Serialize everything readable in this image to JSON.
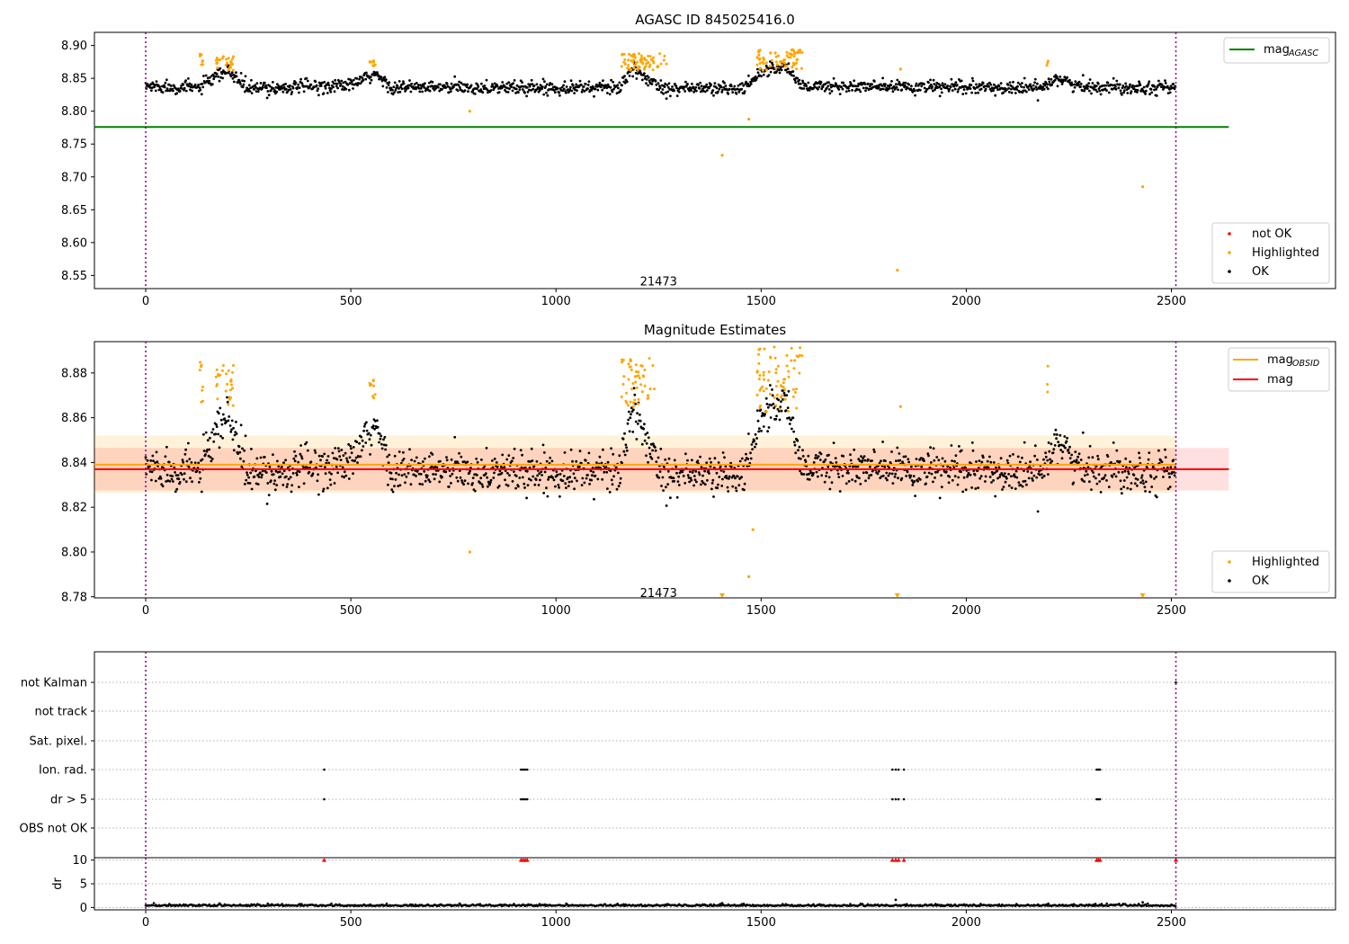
{
  "figure": {
    "title_top": "AGASC ID 845025416.0",
    "title_mid": "Magnitude Estimates"
  },
  "chart_data": [
    {
      "type": "scatter",
      "title": "AGASC ID 845025416.0",
      "xlim": [
        -125,
        2900
      ],
      "ylim": [
        8.53,
        8.92
      ],
      "xticks": [
        0,
        500,
        1000,
        1500,
        2000,
        2500
      ],
      "yticks": [
        8.55,
        8.6,
        8.65,
        8.7,
        8.75,
        8.8,
        8.85,
        8.9
      ],
      "reference_line": {
        "name": "mag_AGASC",
        "y": 8.776,
        "x_range": [
          -125,
          2640
        ],
        "color": "#008000"
      },
      "vlines": [
        0,
        2511
      ],
      "annotation": {
        "text": "21473",
        "x": 1250,
        "y": 8.54
      },
      "legend_main": {
        "label": "mag",
        "sub": "AGASC",
        "position": "upper right"
      },
      "legend_points": [
        "not OK",
        "Highlighted",
        "OK"
      ],
      "legend_points_position": "lower right",
      "series": [
        {
          "name": "OK",
          "color": "#000000",
          "trend": [
            [
              0,
              8.838
            ],
            [
              130,
              8.836
            ],
            [
              200,
              8.862
            ],
            [
              250,
              8.834
            ],
            [
              500,
              8.84
            ],
            [
              560,
              8.856
            ],
            [
              600,
              8.836
            ],
            [
              1150,
              8.836
            ],
            [
              1190,
              8.862
            ],
            [
              1260,
              8.836
            ],
            [
              1460,
              8.834
            ],
            [
              1500,
              8.862
            ],
            [
              1560,
              8.868
            ],
            [
              1600,
              8.838
            ],
            [
              2180,
              8.835
            ],
            [
              2220,
              8.852
            ],
            [
              2270,
              8.838
            ],
            [
              2511,
              8.836
            ]
          ],
          "spread": 0.012
        },
        {
          "name": "Highlighted",
          "color": "#ffa500",
          "clusters": [
            [
              128,
              140,
              8.868,
              8.89
            ],
            [
              170,
              215,
              8.862,
              8.884
            ],
            [
              545,
              560,
              8.868,
              8.878
            ],
            [
              1160,
              1270,
              8.862,
              8.888
            ],
            [
              1490,
              1600,
              8.862,
              8.894
            ],
            [
              2195,
              2200,
              8.868,
              8.884
            ]
          ],
          "points": [
            [
              790,
              8.8
            ],
            [
              1470,
              8.788
            ],
            [
              1405,
              8.733
            ],
            [
              1832,
              8.558
            ],
            [
              2430,
              8.685
            ],
            [
              1840,
              8.864
            ]
          ]
        },
        {
          "name": "not OK",
          "color": "#ff0000",
          "points": []
        }
      ]
    },
    {
      "type": "scatter",
      "title": "Magnitude Estimates",
      "xlim": [
        -125,
        2900
      ],
      "ylim": [
        8.7795,
        8.894
      ],
      "xticks": [
        0,
        500,
        1000,
        1500,
        2000,
        2500
      ],
      "yticks": [
        8.78,
        8.8,
        8.82,
        8.84,
        8.86,
        8.88
      ],
      "bands": [
        {
          "name": "mag_OBSID band",
          "y0": 8.8265,
          "y1": 8.852,
          "x_range": [
            -125,
            2511
          ],
          "color": "#ffa500",
          "alpha": 0.15
        },
        {
          "name": "mag band",
          "y0": 8.8275,
          "y1": 8.8465,
          "x_range": [
            -125,
            2640
          ],
          "color": "#ff0000",
          "alpha": 0.12
        }
      ],
      "lines": [
        {
          "name": "mag_OBSID",
          "y": 8.839,
          "x_range": [
            -125,
            2511
          ],
          "color": "#ffa500"
        },
        {
          "name": "mag",
          "y": 8.837,
          "x_range": [
            -125,
            2640
          ],
          "color": "#ff0000"
        }
      ],
      "vlines": [
        0,
        2511
      ],
      "annotation": {
        "text": "21473",
        "x": 1250,
        "y": 8.7815
      },
      "legend_lines": [
        {
          "label": "mag",
          "sub": "OBSID",
          "color": "#ffa500"
        },
        {
          "label": "mag",
          "sub": "",
          "color": "#ff0000"
        }
      ],
      "legend_points": [
        "Highlighted",
        "OK"
      ],
      "series": [
        {
          "name": "OK",
          "color": "#000000",
          "trend": [
            [
              0,
              8.838
            ],
            [
              130,
              8.836
            ],
            [
              200,
              8.862
            ],
            [
              250,
              8.834
            ],
            [
              500,
              8.84
            ],
            [
              560,
              8.856
            ],
            [
              600,
              8.836
            ],
            [
              1150,
              8.836
            ],
            [
              1190,
              8.862
            ],
            [
              1260,
              8.836
            ],
            [
              1460,
              8.834
            ],
            [
              1500,
              8.862
            ],
            [
              1560,
              8.868
            ],
            [
              1600,
              8.838
            ],
            [
              2180,
              8.835
            ],
            [
              2220,
              8.852
            ],
            [
              2270,
              8.838
            ],
            [
              2511,
              8.836
            ]
          ],
          "spread": 0.011
        },
        {
          "name": "Highlighted",
          "color": "#ffa500",
          "clusters": [
            [
              128,
              140,
              8.864,
              8.888
            ],
            [
              170,
              215,
              8.865,
              8.884
            ],
            [
              545,
              560,
              8.868,
              8.878
            ],
            [
              1160,
              1240,
              8.864,
              8.887
            ],
            [
              1490,
              1600,
              8.862,
              8.892
            ],
            [
              2195,
              2200,
              8.868,
              8.884
            ]
          ],
          "points": [
            [
              790,
              8.8
            ],
            [
              1470,
              8.789
            ],
            [
              1480,
              8.81
            ],
            [
              1840,
              8.865
            ]
          ],
          "offscale": [
            1405,
            1832,
            2430
          ]
        }
      ]
    },
    {
      "type": "scatter",
      "title": "",
      "xlim": [
        -125,
        2900
      ],
      "categories": [
        "not Kalman",
        "not track",
        "Sat. pixel.",
        "Ion. rad.",
        "dr > 5",
        "OBS not OK"
      ],
      "flag_points": {
        "Ion. rad.": [
          435,
          915,
          920,
          925,
          930,
          1820,
          1828,
          1835,
          1848,
          2318,
          2322,
          2326
        ],
        "dr > 5": [
          435,
          915,
          920,
          925,
          930,
          1820,
          1828,
          1835,
          1848,
          2318,
          2322,
          2326
        ],
        "not Kalman": [
          2511
        ]
      },
      "vlines": [
        0,
        2511
      ]
    },
    {
      "type": "line",
      "title": "",
      "xlim": [
        -125,
        2900
      ],
      "ylim": [
        -0.5,
        10.5
      ],
      "ylabel": "dr",
      "yticks": [
        0,
        5,
        10
      ],
      "xticks": [
        0,
        500,
        1000,
        1500,
        2000,
        2500
      ],
      "dr_baseline": 0.3,
      "dr_spikes": [
        [
          1828,
          1.6
        ],
        [
          1405,
          0.9
        ],
        [
          2430,
          1.1
        ],
        [
          2200,
          0.8
        ]
      ],
      "clipped_markers": [
        435,
        915,
        920,
        925,
        930,
        1820,
        1828,
        1835,
        1848,
        2318,
        2322,
        2326,
        2511
      ],
      "vlines": [
        0,
        2511
      ]
    }
  ]
}
